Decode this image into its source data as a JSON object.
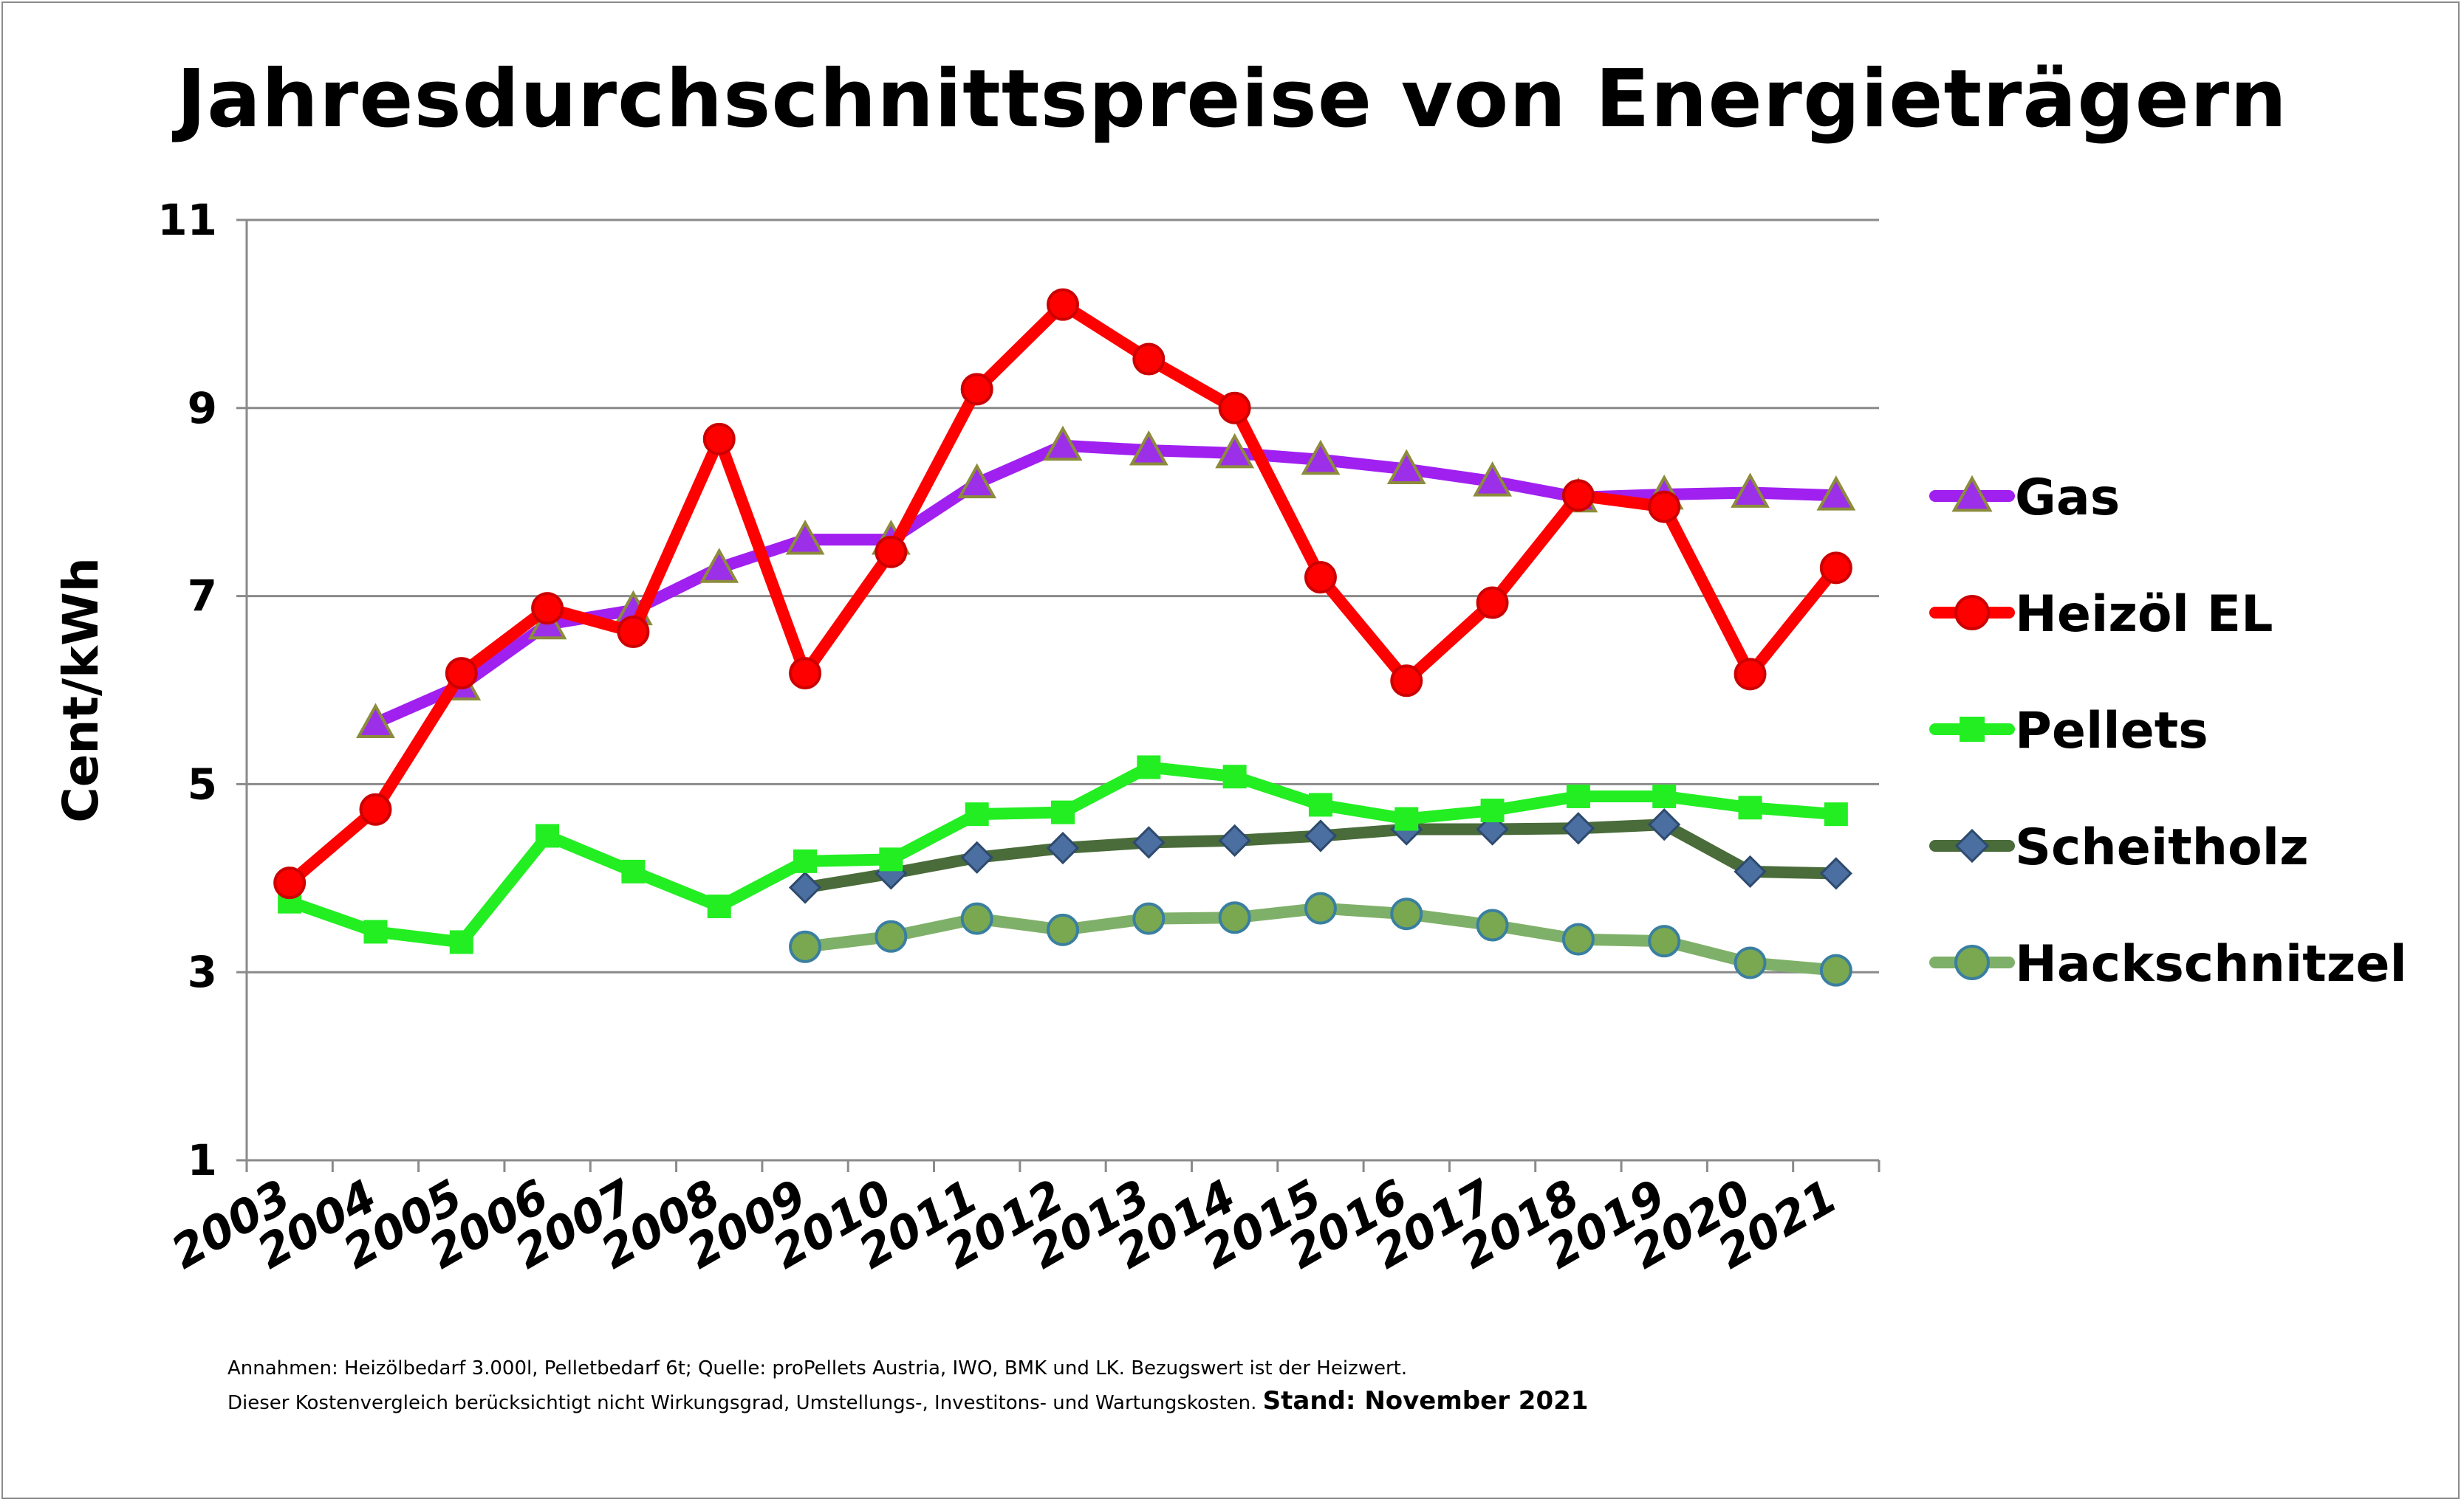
{
  "title": "Jahresdurchschnittspreise von Energieträgern",
  "footnote": {
    "line1": "Annahmen: Heizölbedarf 3.000l, Pelletbedarf 6t; Quelle: proPellets Austria, IWO, BMK und LK. Bezugswert ist der Heizwert.",
    "line2": "Dieser Kostenvergleich berücksichtigt nicht Wirkungsgrad, Umstellungs-, Investitons- und  Wartungskosten.",
    "stand": "Stand: November 2021"
  },
  "chart_data": {
    "type": "line",
    "ylabel": "Cent/kWh",
    "xlabel": "",
    "ylim": [
      1,
      11
    ],
    "yticks": [
      "1",
      "3",
      "5",
      "7",
      "9",
      "11"
    ],
    "categories": [
      "2003",
      "2004",
      "2005",
      "2006",
      "2007",
      "2008",
      "2009",
      "2010",
      "2011",
      "2012",
      "2013",
      "2014",
      "2015",
      "2016",
      "2017",
      "2018",
      "2019",
      "2020",
      "2021"
    ],
    "grid": true,
    "legend_position": "right",
    "series": [
      {
        "name": "Gas",
        "color": "#a020f0",
        "marker": "triangle",
        "marker_fill": "#9b30e8",
        "marker_stroke": "#8c8c3c",
        "values": [
          null,
          5.65,
          6.05,
          6.7,
          6.85,
          7.3,
          7.6,
          7.6,
          8.2,
          8.6,
          8.55,
          8.52,
          8.45,
          8.35,
          8.22,
          8.05,
          8.08,
          8.1,
          8.07
        ]
      },
      {
        "name": "Heizöl EL",
        "color": "#ff0000",
        "marker": "circle",
        "marker_fill": "#ff0000",
        "marker_stroke": "#cc0000",
        "values": [
          3.95,
          4.73,
          6.18,
          6.87,
          6.62,
          8.67,
          6.18,
          7.47,
          9.2,
          10.1,
          9.52,
          9.0,
          7.2,
          6.1,
          6.93,
          8.07,
          7.95,
          6.17,
          7.3
        ]
      },
      {
        "name": "Pellets",
        "color": "#22ee22",
        "marker": "square",
        "marker_fill": "#22ee22",
        "marker_stroke": "#22ee22",
        "values": [
          3.75,
          3.43,
          3.32,
          4.45,
          4.07,
          3.7,
          4.18,
          4.2,
          4.68,
          4.7,
          5.18,
          5.08,
          4.78,
          4.63,
          4.72,
          4.87,
          4.87,
          4.75,
          4.68
        ]
      },
      {
        "name": "Scheitholz",
        "color": "#4a6b3a",
        "marker": "diamond",
        "marker_fill": "#4a6fa0",
        "marker_stroke": "#2e4a6e",
        "values": [
          null,
          null,
          null,
          null,
          null,
          null,
          3.9,
          4.05,
          4.22,
          4.32,
          4.38,
          4.4,
          4.45,
          4.52,
          4.52,
          4.53,
          4.57,
          4.07,
          4.05
        ]
      },
      {
        "name": "Hackschnitzel",
        "color": "#7fb069",
        "marker": "circle",
        "marker_fill": "#7aa850",
        "marker_stroke": "#3a7fa0",
        "values": [
          null,
          null,
          null,
          null,
          null,
          null,
          3.27,
          3.38,
          3.57,
          3.45,
          3.57,
          3.58,
          3.68,
          3.62,
          3.5,
          3.35,
          3.33,
          3.1,
          3.02
        ]
      }
    ]
  }
}
